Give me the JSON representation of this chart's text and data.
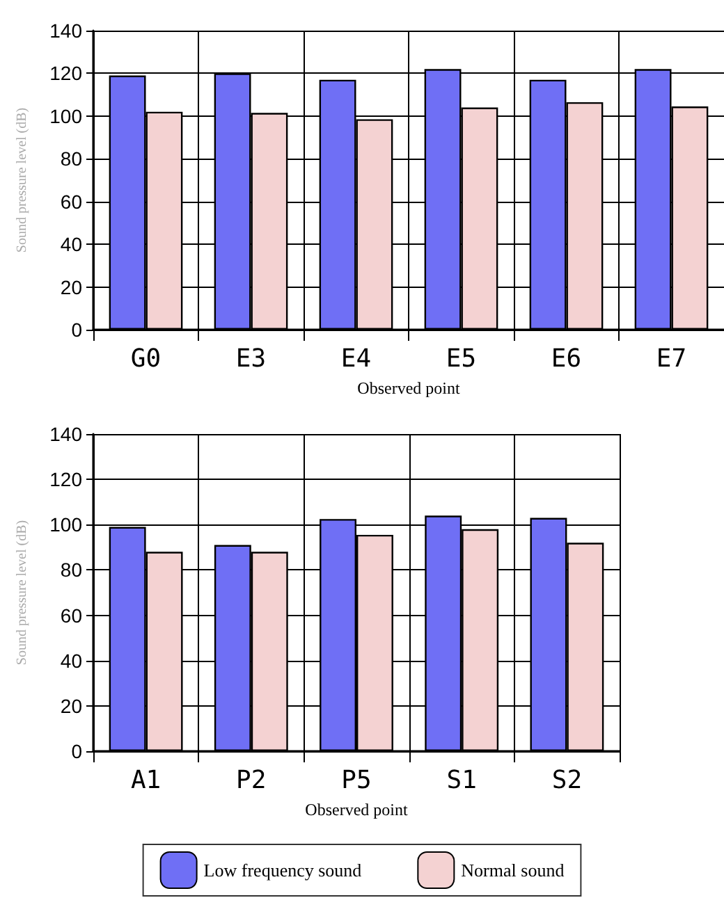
{
  "chart_data": [
    {
      "type": "bar",
      "categories": [
        "G0",
        "E3",
        "E4",
        "E5",
        "E6",
        "E7"
      ],
      "xlabel": "Observed point",
      "ylabel": "Sound pressure level (dB)",
      "ylim": [
        0,
        140
      ],
      "yticks": [
        0,
        20,
        40,
        60,
        80,
        100,
        120,
        140
      ],
      "grid": true,
      "legend": false,
      "series": [
        {
          "color": "#6f6ff5",
          "values": [
            119,
            120,
            117,
            122,
            117,
            122
          ]
        },
        {
          "color": "#f4d2d2",
          "values": [
            102,
            101.5,
            98.5,
            104,
            106.5,
            104.5
          ]
        }
      ]
    },
    {
      "type": "bar",
      "categories": [
        "A1",
        "P2",
        "P5",
        "S1",
        "S2"
      ],
      "xlabel": "Observed point",
      "ylabel": "Sound pressure level (dB)",
      "ylim": [
        0,
        140
      ],
      "yticks": [
        0,
        20,
        40,
        60,
        80,
        100,
        120,
        140
      ],
      "grid": true,
      "legend": "bottom",
      "series": [
        {
          "name": "Low frequency sound",
          "color": "#6f6ff5",
          "values": [
            99,
            91,
            102.5,
            104,
            103
          ]
        },
        {
          "name": "Normal sound",
          "color": "#f4d2d2",
          "values": [
            88,
            88,
            95.5,
            98,
            92
          ]
        }
      ]
    }
  ]
}
